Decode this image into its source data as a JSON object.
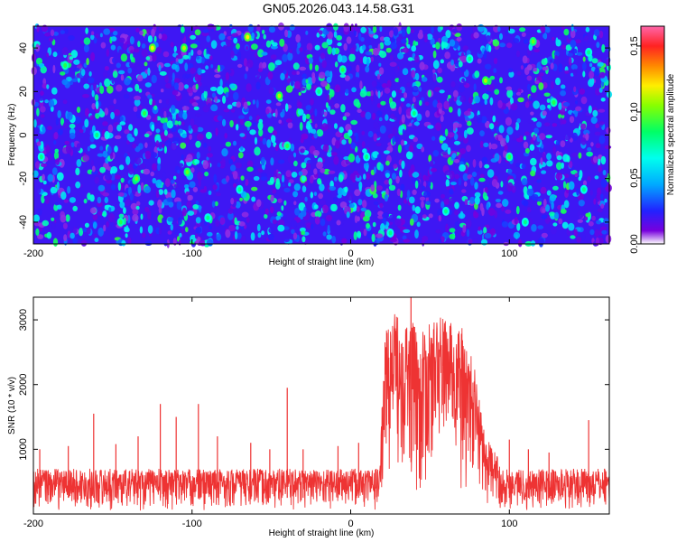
{
  "title": "GN05.2026.043.14.58.G31",
  "chart_data": [
    {
      "type": "heatmap",
      "name": "spectrogram",
      "xlabel": "Height of straight line (km)",
      "ylabel": "Frequency (Hz)",
      "xlim": [
        -200,
        163
      ],
      "ylim": [
        -50,
        50
      ],
      "xticks": [
        -200,
        -100,
        0,
        100
      ],
      "xtick_labels": [
        "-200",
        "-100",
        "0",
        "100"
      ],
      "yticks": [
        -40,
        -20,
        0,
        20,
        40
      ],
      "ytick_labels": [
        "-40",
        "-20",
        "0",
        "20",
        "40"
      ],
      "colorbar": {
        "label": "Normalized spectral amplitude",
        "range": [
          0.0,
          0.165
        ],
        "ticks": [
          0.0,
          0.05,
          0.1,
          0.15
        ],
        "tick_labels": [
          "0.00",
          "0.05",
          "0.10",
          "0.15"
        ],
        "colormap": [
          "#ff66aa",
          "#ff2222",
          "#ff8800",
          "#ffee00",
          "#88ff00",
          "#00ff66",
          "#00ffee",
          "#00aaff",
          "#2222ff",
          "#7700dd",
          "#ffffff"
        ],
        "colormap_stops": [
          0.165,
          0.15,
          0.135,
          0.12,
          0.105,
          0.085,
          0.065,
          0.045,
          0.025,
          0.01,
          0.0
        ]
      },
      "background_level": 0.02,
      "hotspots": [
        {
          "x": -125,
          "y": 40,
          "v": 0.12
        },
        {
          "x": -105,
          "y": 40,
          "v": 0.11
        },
        {
          "x": -65,
          "y": 45,
          "v": 0.12
        },
        {
          "x": -45,
          "y": 18,
          "v": 0.11
        },
        {
          "x": 85,
          "y": 25,
          "v": 0.11
        },
        {
          "x": -103,
          "y": -17,
          "v": 0.1
        },
        {
          "x": -135,
          "y": -20,
          "v": 0.1
        },
        {
          "x": 115,
          "y": 43,
          "v": 0.1
        },
        {
          "x": -180,
          "y": 32,
          "v": 0.09
        },
        {
          "x": -5,
          "y": 30,
          "v": 0.09
        },
        {
          "x": -145,
          "y": -40,
          "v": 0.09
        },
        {
          "x": 100,
          "y": -10,
          "v": 0.09
        },
        {
          "x": -40,
          "y": -5,
          "v": 0.09
        },
        {
          "x": 40,
          "y": 10,
          "v": 0.08
        },
        {
          "x": 128,
          "y": 15,
          "v": 0.09
        },
        {
          "x": -90,
          "y": -38,
          "v": 0.08
        },
        {
          "x": -130,
          "y": 10,
          "v": 0.09
        },
        {
          "x": 10,
          "y": -10,
          "v": 0.08
        },
        {
          "x": 60,
          "y": -35,
          "v": 0.08
        },
        {
          "x": 147,
          "y": -25,
          "v": 0.08
        },
        {
          "x": -160,
          "y": 0,
          "v": 0.08
        },
        {
          "x": 75,
          "y": 35,
          "v": 0.08
        },
        {
          "x": 150,
          "y": 38,
          "v": 0.08
        },
        {
          "x": -20,
          "y": 20,
          "v": 0.08
        },
        {
          "x": -70,
          "y": -25,
          "v": 0.08
        },
        {
          "x": -195,
          "y": -10,
          "v": 0.08
        },
        {
          "x": 25,
          "y": -45,
          "v": 0.08
        },
        {
          "x": 110,
          "y": -40,
          "v": 0.08
        }
      ]
    },
    {
      "type": "line",
      "name": "snr",
      "xlabel": "Height of straight line (km)",
      "ylabel": "SNR (10 * v/v)",
      "xlim": [
        -200,
        163
      ],
      "ylim": [
        0,
        3350
      ],
      "xticks": [
        -200,
        -100,
        0,
        100
      ],
      "xtick_labels": [
        "-200",
        "-100",
        "0",
        "100"
      ],
      "yticks": [
        1000,
        2000,
        3000
      ],
      "ytick_labels": [
        "1000",
        "2000",
        "3000"
      ],
      "line_color": "#ee3333",
      "baseline_envelope": {
        "min": 50,
        "max": 700
      },
      "signal_envelope": [
        {
          "x": 18,
          "min": 50,
          "max": 700
        },
        {
          "x": 22,
          "min": 600,
          "max": 2900
        },
        {
          "x": 30,
          "min": 700,
          "max": 3200
        },
        {
          "x": 45,
          "min": 50,
          "max": 2800
        },
        {
          "x": 55,
          "min": 900,
          "max": 3100
        },
        {
          "x": 62,
          "min": 1100,
          "max": 3000
        },
        {
          "x": 70,
          "min": 50,
          "max": 2900
        },
        {
          "x": 78,
          "min": 400,
          "max": 2300
        },
        {
          "x": 85,
          "min": 150,
          "max": 1200
        },
        {
          "x": 95,
          "min": 50,
          "max": 800
        }
      ],
      "spikes": [
        {
          "x": -196,
          "y": 1000
        },
        {
          "x": -178,
          "y": 1050
        },
        {
          "x": -162,
          "y": 1550
        },
        {
          "x": -148,
          "y": 1080
        },
        {
          "x": -134,
          "y": 1200
        },
        {
          "x": -120,
          "y": 1700
        },
        {
          "x": -110,
          "y": 1500
        },
        {
          "x": -96,
          "y": 1700
        },
        {
          "x": -84,
          "y": 1200
        },
        {
          "x": -63,
          "y": 1100
        },
        {
          "x": -51,
          "y": 1000
        },
        {
          "x": -40,
          "y": 1950
        },
        {
          "x": -30,
          "y": 1000
        },
        {
          "x": -8,
          "y": 1050
        },
        {
          "x": 5,
          "y": 1100
        },
        {
          "x": 100,
          "y": 1150
        },
        {
          "x": 112,
          "y": 1000
        },
        {
          "x": 125,
          "y": 950
        },
        {
          "x": 150,
          "y": 1450
        },
        {
          "x": 160,
          "y": 700
        }
      ],
      "peak": {
        "x": 38,
        "y": 3350
      }
    }
  ]
}
